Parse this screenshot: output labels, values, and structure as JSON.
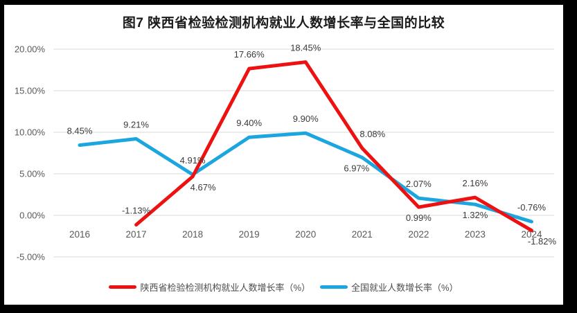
{
  "chart_data": {
    "type": "line",
    "title": "图7 陕西省检验检测机构就业人数增长率与全国的比较",
    "x": [
      "2016",
      "2017",
      "2018",
      "2019",
      "2020",
      "2021",
      "2022",
      "2023",
      "2024"
    ],
    "ylim": [
      -5,
      20
    ],
    "yticks": [
      {
        "value": 20,
        "label": "20.00%"
      },
      {
        "value": 15,
        "label": "15.00%"
      },
      {
        "value": 10,
        "label": "10.00%"
      },
      {
        "value": 5,
        "label": "5.00%"
      },
      {
        "value": 0,
        "label": "0.00%"
      },
      {
        "value": -5,
        "label": "-5.00%"
      }
    ],
    "grid": true,
    "legend_position": "bottom",
    "series": [
      {
        "name": "陕西省检验检测机构就业人数增长率（%）",
        "color": "#ee1111",
        "values": [
          null,
          -1.13,
          4.67,
          17.66,
          18.45,
          8.08,
          0.99,
          2.16,
          -1.82
        ],
        "labels": [
          "",
          "-1.13%",
          "4.67%",
          "17.66%",
          "18.45%",
          "8.08%",
          "0.99%",
          "2.16%",
          "-1.82%"
        ],
        "label_side": [
          "",
          "above",
          "below-right",
          "above",
          "above",
          "above-right",
          "below",
          "above",
          "below-right"
        ]
      },
      {
        "name": "全国就业人数增长率（%）",
        "color": "#1ba6e0",
        "values": [
          8.45,
          9.21,
          4.91,
          9.4,
          9.9,
          6.97,
          2.07,
          1.32,
          -0.76
        ],
        "labels": [
          "8.45%",
          "9.21%",
          "4.91%",
          "9.40%",
          "9.90%",
          "6.97%",
          "2.07%",
          "1.32%",
          "-0.76%"
        ],
        "label_side": [
          "above",
          "above",
          "above",
          "above",
          "above",
          "below-left",
          "above",
          "below",
          "above"
        ]
      }
    ],
    "colors": {
      "grid": "#d9d9d9",
      "axis_text": "#595959",
      "label_text": "#3a3a3a"
    }
  }
}
